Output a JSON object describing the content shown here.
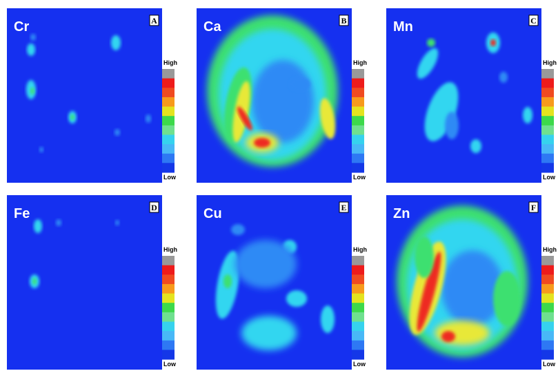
{
  "panels": [
    {
      "element": "Cr",
      "letter": "A",
      "high": "High",
      "low": "Low"
    },
    {
      "element": "Ca",
      "letter": "B",
      "high": "High",
      "low": "Low"
    },
    {
      "element": "Mn",
      "letter": "C",
      "high": "High",
      "low": "Low"
    },
    {
      "element": "Fe",
      "letter": "D",
      "high": "High",
      "low": "Low"
    },
    {
      "element": "Cu",
      "letter": "E",
      "high": "High",
      "low": "Low"
    },
    {
      "element": "Zn",
      "letter": "F",
      "high": "High",
      "low": "Low"
    }
  ]
}
